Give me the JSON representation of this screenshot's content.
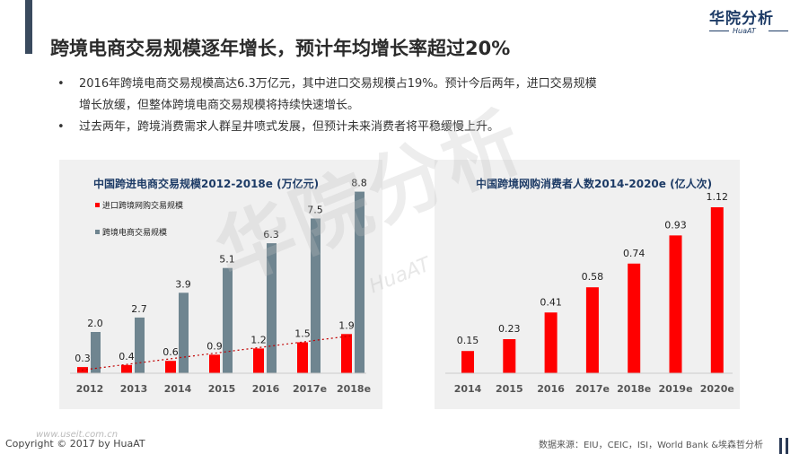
{
  "header": {
    "title": "跨境电商交易规模逐年增长，预计年均增长率超过20%",
    "logo_main": "华院分析",
    "logo_sub": "HuaAT"
  },
  "bullets": [
    "2016年跨境电商交易规模高达6.3万亿元，其中进口交易规模占19%。预计今后两年，进口交易规模",
    "增长放缓，但整体跨境电商交易规模将持续快速增长。",
    "过去两年，跨境消费需求人群呈井喷式发展，但预计未来消费者将平稳缓慢上升。"
  ],
  "bullet_symbol": "•",
  "watermark": {
    "text": "华院分析",
    "sub": "HuaAT"
  },
  "footer": {
    "copyright": "Copyright © 2017 by HuaAT",
    "url": "www.useit.com.cn",
    "source": "数据来源：EIU，CEIC，ISI，World Bank &埃森哲分析"
  },
  "colors": {
    "red": "#ff0000",
    "gray": "#6f8590",
    "navy": "#1d3b66",
    "panel": "#f0f0f0",
    "trend": "#c00000"
  },
  "chart_data": [
    {
      "type": "bar",
      "title": "中国跨进电商交易规模2012-2018e (万亿元)",
      "categories": [
        "2012",
        "2013",
        "2014",
        "2015",
        "2016",
        "2017e",
        "2018e"
      ],
      "series": [
        {
          "name": "进口跨境网购交易规模",
          "values": [
            0.3,
            0.4,
            0.6,
            0.9,
            1.2,
            1.5,
            1.9
          ],
          "color": "#ff0000"
        },
        {
          "name": "跨境电商交易规模",
          "values": [
            2.0,
            2.7,
            3.9,
            5.1,
            6.3,
            7.5,
            8.8
          ],
          "color": "#6f8590"
        }
      ],
      "value_labels": {
        "import": [
          "0.3",
          "0.4",
          "0.6",
          "0.9",
          "1.2",
          "1.5",
          "1.9"
        ],
        "total": [
          "2.0",
          "2.7",
          "3.9",
          "5.1",
          "6.3",
          "7.5",
          "8.8"
        ]
      },
      "trendline": "dotted linear on import series",
      "ylim": [
        0,
        8.8
      ],
      "legend": "top-left",
      "grid": false
    },
    {
      "type": "bar",
      "title": "中国跨境网购消费者人数2014-2020e (亿人次)",
      "categories": [
        "2014",
        "2015",
        "2016",
        "2017e",
        "2018e",
        "2019e",
        "2020e"
      ],
      "series": [
        {
          "values": [
            0.15,
            0.23,
            0.41,
            0.58,
            0.74,
            0.93,
            1.12
          ],
          "color": "#ff0000"
        }
      ],
      "value_labels": [
        "0.15",
        "0.23",
        "0.41",
        "0.58",
        "0.74",
        "0.93",
        "1.12"
      ],
      "ylim": [
        0,
        1.12
      ],
      "grid": false
    }
  ]
}
